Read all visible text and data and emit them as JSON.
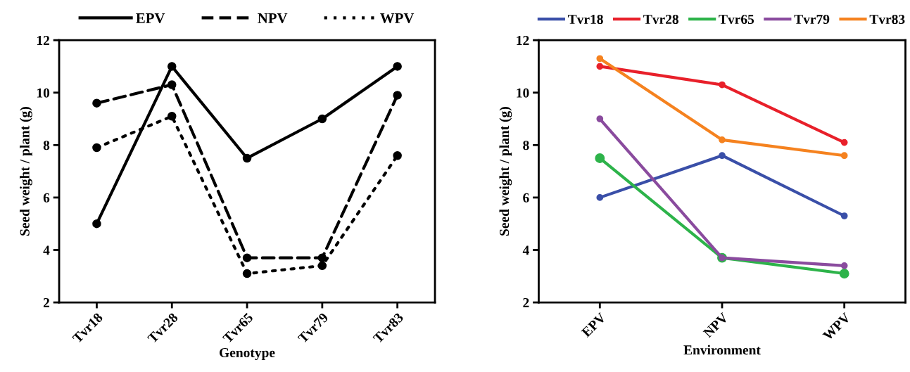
{
  "chart_data": [
    {
      "type": "line",
      "xlabel": "Genotype",
      "ylabel": "Seed weight / plant (g)",
      "categories": [
        "Tvr18",
        "Tvr28",
        "Tvr65",
        "Tvr79",
        "Tvr83"
      ],
      "ylim": [
        2,
        12
      ],
      "yticks": [
        2,
        4,
        6,
        8,
        10,
        12
      ],
      "legend": "top",
      "marker": "circle",
      "series": [
        {
          "name": "EPV",
          "color": "#000000",
          "line_style": "solid",
          "values": [
            5.0,
            11.0,
            7.5,
            9.0,
            11.0
          ]
        },
        {
          "name": "NPV",
          "color": "#000000",
          "line_style": "dashed",
          "values": [
            9.6,
            10.3,
            3.7,
            3.7,
            9.9
          ]
        },
        {
          "name": "WPV",
          "color": "#000000",
          "line_style": "dotted",
          "values": [
            7.9,
            9.1,
            3.1,
            3.4,
            7.6
          ]
        }
      ]
    },
    {
      "type": "line",
      "xlabel": "Environment",
      "ylabel": "Seed weight / plant (g)",
      "categories": [
        "EPV",
        "NPV",
        "WPV"
      ],
      "ylim": [
        2,
        12
      ],
      "yticks": [
        2,
        4,
        6,
        8,
        10,
        12
      ],
      "legend": "top",
      "marker": "circle",
      "line_style": "solid",
      "series": [
        {
          "name": "Tvr18",
          "color": "#3a4fa8",
          "values": [
            6.0,
            7.6,
            5.3
          ]
        },
        {
          "name": "Tvr28",
          "color": "#e8202a",
          "values": [
            11.0,
            10.3,
            8.1
          ]
        },
        {
          "name": "Tvr65",
          "color": "#2db34a",
          "values": [
            7.5,
            3.7,
            3.1
          ]
        },
        {
          "name": "Tvr79",
          "color": "#8a4b9e",
          "values": [
            9.0,
            3.7,
            3.4
          ]
        },
        {
          "name": "Tvr83",
          "color": "#f5821f",
          "values": [
            11.3,
            8.2,
            7.6
          ]
        }
      ]
    }
  ]
}
